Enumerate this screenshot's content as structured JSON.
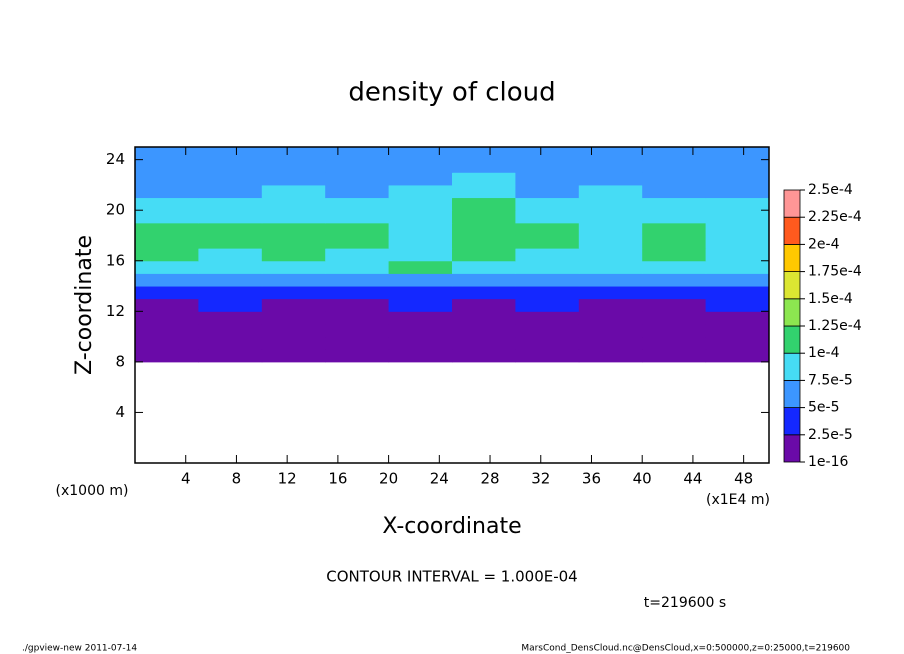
{
  "chart_data": {
    "type": "heatmap",
    "title": "density of cloud",
    "x_label": "X-coordinate",
    "y_label": "Z-coordinate",
    "x_unit_label": "(x1E4 m)",
    "y_unit_label": "(x1000 m)",
    "xlim": [
      0,
      50
    ],
    "ylim": [
      0,
      25
    ],
    "xticks": [
      4,
      8,
      12,
      16,
      20,
      24,
      28,
      32,
      36,
      40,
      44,
      48
    ],
    "yticks": [
      4,
      8,
      12,
      16,
      20,
      24
    ],
    "x_bins": [
      0,
      5,
      10,
      15,
      20,
      25,
      30,
      35,
      40,
      45,
      50
    ],
    "y_bins": [
      8,
      9,
      10,
      11,
      12,
      13,
      14,
      15,
      16,
      17,
      18,
      19,
      20,
      21,
      22,
      23,
      24,
      25
    ],
    "z": [
      [
        1e-05,
        1e-05,
        1e-05,
        1e-05,
        1e-05,
        1e-05,
        1e-05,
        1e-05,
        1e-05,
        1e-05
      ],
      [
        1e-05,
        1e-05,
        1e-05,
        1e-05,
        1e-05,
        1e-05,
        1e-05,
        1e-05,
        1e-05,
        1e-05
      ],
      [
        1e-05,
        1e-05,
        1e-05,
        1e-05,
        1e-05,
        1e-05,
        1e-05,
        1e-05,
        1e-05,
        1e-05
      ],
      [
        1.5e-05,
        1.5e-05,
        1.5e-05,
        1.5e-05,
        1.5e-05,
        1.5e-05,
        1.5e-05,
        1.5e-05,
        1.5e-05,
        1.5e-05
      ],
      [
        2e-05,
        3e-05,
        2e-05,
        2e-05,
        3e-05,
        2e-05,
        3e-05,
        2e-05,
        2e-05,
        3e-05
      ],
      [
        4e-05,
        4e-05,
        3.5e-05,
        4e-05,
        4e-05,
        4.5e-05,
        4e-05,
        4e-05,
        3.5e-05,
        4e-05
      ],
      [
        6e-05,
        6.5e-05,
        6e-05,
        6e-05,
        7e-05,
        6e-05,
        6e-05,
        6.5e-05,
        6e-05,
        6e-05
      ],
      [
        8e-05,
        9e-05,
        8e-05,
        8e-05,
        0.000105,
        8e-05,
        9e-05,
        8e-05,
        8e-05,
        8e-05
      ],
      [
        0.000105,
        9e-05,
        0.000105,
        9e-05,
        8e-05,
        0.00011,
        9e-05,
        8e-05,
        0.000105,
        8e-05
      ],
      [
        0.000105,
        0.000105,
        0.000105,
        0.000105,
        8e-05,
        0.00011,
        0.000105,
        8e-05,
        0.000105,
        9e-05
      ],
      [
        0.000105,
        0.000105,
        0.000105,
        0.000105,
        8e-05,
        0.00011,
        0.000105,
        8e-05,
        0.000105,
        9e-05
      ],
      [
        9e-05,
        9e-05,
        8.5e-05,
        9e-05,
        8e-05,
        0.000105,
        8e-05,
        8e-05,
        9e-05,
        8e-05
      ],
      [
        8e-05,
        8e-05,
        8e-05,
        8e-05,
        8e-05,
        0.000105,
        8e-05,
        8e-05,
        8e-05,
        8e-05
      ],
      [
        7e-05,
        7e-05,
        8e-05,
        7e-05,
        8e-05,
        8e-05,
        7e-05,
        8e-05,
        7e-05,
        7e-05
      ],
      [
        6e-05,
        6e-05,
        7e-05,
        6e-05,
        6e-05,
        8e-05,
        6e-05,
        7e-05,
        6e-05,
        6e-05
      ],
      [
        5.5e-05,
        6e-05,
        6e-05,
        5.5e-05,
        6e-05,
        6e-05,
        6e-05,
        6e-05,
        5.5e-05,
        6e-05
      ],
      [
        5.5e-05,
        5.5e-05,
        6e-05,
        5.5e-05,
        6e-05,
        6e-05,
        5.5e-05,
        6e-05,
        5.5e-05,
        5.5e-05
      ]
    ],
    "levels": [
      {
        "value": 1e-16,
        "label": "1e-16"
      },
      {
        "value": 2.5e-05,
        "label": "2.5e-5"
      },
      {
        "value": 5e-05,
        "label": "5e-5"
      },
      {
        "value": 7.5e-05,
        "label": "7.5e-5"
      },
      {
        "value": 0.0001,
        "label": "1e-4"
      },
      {
        "value": 0.000125,
        "label": "1.25e-4"
      },
      {
        "value": 0.00015,
        "label": "1.5e-4"
      },
      {
        "value": 0.000175,
        "label": "1.75e-4"
      },
      {
        "value": 0.0002,
        "label": "2e-4"
      },
      {
        "value": 0.000225,
        "label": "2.25e-4"
      },
      {
        "value": 0.00025,
        "label": "2.5e-4"
      }
    ],
    "colors": [
      "#6a0aa8",
      "#1428ff",
      "#3c96ff",
      "#46dcf5",
      "#32d26e",
      "#8ce650",
      "#dce632",
      "#ffc800",
      "#ff5a1e",
      "#ff9696"
    ],
    "annotation": "CONTOUR INTERVAL = 1.000E-04",
    "time_label": "t=219600 s"
  },
  "footer": {
    "left": "./gpview-new  2011-07-14",
    "right": "MarsCond_DensCloud.nc@DensCloud,x=0:500000,z=0:25000,t=219600"
  }
}
